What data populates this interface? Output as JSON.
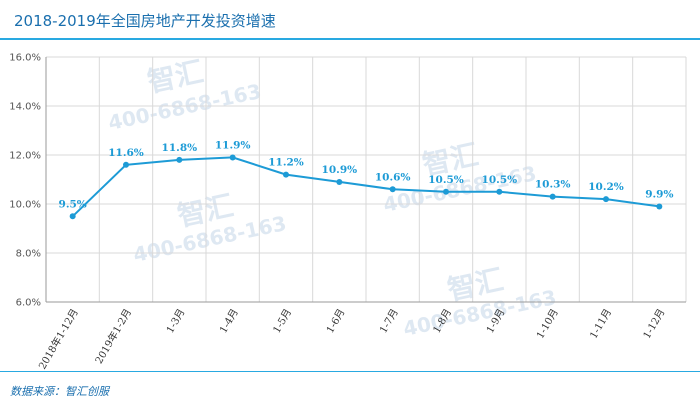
{
  "title": "2018-2019年全国房地产开发投资增速",
  "source": "数据来源：智汇创服",
  "watermark": {
    "brand": "智汇",
    "phone": "400-6868-163"
  },
  "colors": {
    "line": "#1d9bd6",
    "accent_rule": "#29a9e1",
    "title": "#1a6fae"
  },
  "chart_data": {
    "type": "line",
    "title": "2018-2019年全国房地产开发投资增速",
    "categories": [
      "2018年1-12月",
      "2019年1-2月",
      "1-3月",
      "1-4月",
      "1-5月",
      "1-6月",
      "1-7月",
      "1-8月",
      "1-9月",
      "1-10月",
      "1-11月",
      "1-12月"
    ],
    "values": [
      9.5,
      11.6,
      11.8,
      11.9,
      11.2,
      10.9,
      10.6,
      10.5,
      10.5,
      10.3,
      10.2,
      9.9
    ],
    "value_labels": [
      "9.5%",
      "11.6%",
      "11.8%",
      "11.9%",
      "11.2%",
      "10.9%",
      "10.6%",
      "10.5%",
      "10.5%",
      "10.3%",
      "10.2%",
      "9.9%"
    ],
    "ylim": [
      6,
      16
    ],
    "yticks": [
      6,
      8,
      10,
      12,
      14,
      16
    ],
    "ytick_labels": [
      "6.0%",
      "8.0%",
      "10.0%",
      "12.0%",
      "14.0%",
      "16.0%"
    ],
    "grid": true,
    "legend": "none",
    "xlabel": "",
    "ylabel": ""
  }
}
